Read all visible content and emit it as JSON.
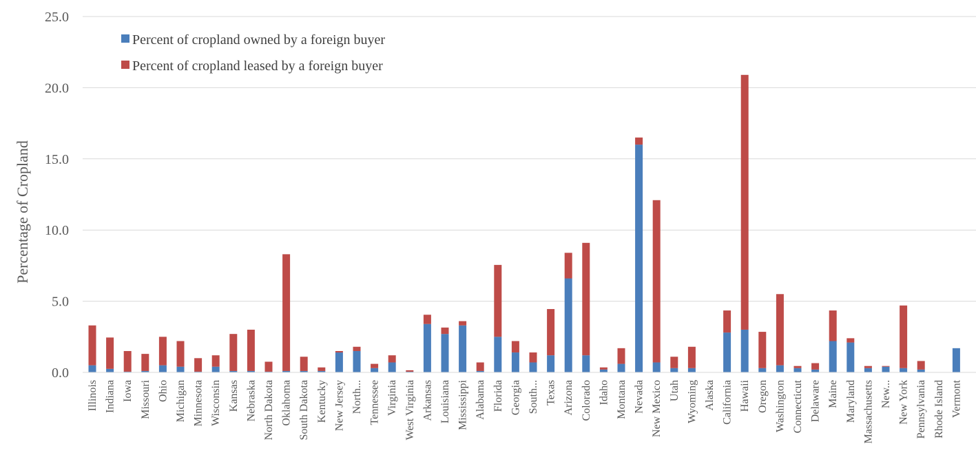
{
  "chart_data": {
    "type": "bar",
    "stacked": true,
    "title": "",
    "xlabel": "",
    "ylabel": "Percentage of  Cropland",
    "ylim": [
      0,
      25
    ],
    "yticks": [
      "0.0",
      "5.0",
      "10.0",
      "15.0",
      "20.0",
      "25.0"
    ],
    "grid": true,
    "legend_position": "top-left",
    "categories": [
      "Illinois",
      "Indiana",
      "Iowa",
      "Missouri",
      "Ohio",
      "Michigan",
      "Minnesota",
      "Wisconsin",
      "Kansas",
      "Nebraska",
      "North Dakota",
      "Oklahoma",
      "South Dakota",
      "Kentucky",
      "New Jersey",
      "North...",
      "Tennessee",
      "Virginia",
      "West Virginia",
      "Arkansas",
      "Louisiana",
      "Mississippi",
      "Alabama",
      "Florida",
      "Georgia",
      "South...",
      "Texas",
      "Arizona",
      "Colorado",
      "Idaho",
      "Montana",
      "Nevada",
      "New Mexico",
      "Utah",
      "Wyoming",
      "Alaska",
      "California",
      "Hawaii",
      "Oregon",
      "Washington",
      "Connecticut",
      "Delaware",
      "Maine",
      "Maryland",
      "Massachusetts",
      "New...",
      "New York",
      "Pennsylvania",
      "Rhode Island",
      "Vermont"
    ],
    "series": [
      {
        "name": "Percent of cropland owned by a foreign buyer",
        "color": "#4a7ebb",
        "values": [
          0.5,
          0.25,
          0.05,
          0.1,
          0.5,
          0.4,
          0.05,
          0.4,
          0.1,
          0.1,
          0.05,
          0.1,
          0.1,
          0.1,
          1.4,
          1.5,
          0.3,
          0.7,
          0.05,
          3.4,
          2.7,
          3.3,
          0.1,
          2.5,
          1.4,
          0.7,
          1.2,
          6.6,
          1.2,
          0.2,
          0.6,
          16.0,
          0.7,
          0.3,
          0.3,
          0.0,
          2.8,
          3.0,
          0.3,
          0.5,
          0.3,
          0.2,
          2.2,
          2.1,
          0.3,
          0.4,
          0.3,
          0.2,
          0.0,
          1.7
        ]
      },
      {
        "name": "Percent of cropland leased by a foreign buyer",
        "color": "#be4b48",
        "values": [
          2.8,
          2.2,
          1.45,
          1.2,
          2.0,
          1.8,
          0.95,
          0.8,
          2.6,
          2.9,
          0.7,
          8.2,
          1.0,
          0.25,
          0.1,
          0.3,
          0.3,
          0.5,
          0.1,
          0.65,
          0.45,
          0.3,
          0.6,
          5.05,
          0.8,
          0.7,
          3.25,
          1.8,
          7.9,
          0.15,
          1.1,
          0.5,
          11.4,
          0.8,
          1.5,
          0.0,
          1.55,
          17.9,
          2.55,
          5.0,
          0.15,
          0.45,
          2.15,
          0.3,
          0.15,
          0.05,
          4.4,
          0.6,
          0.0,
          0.0
        ]
      }
    ]
  }
}
